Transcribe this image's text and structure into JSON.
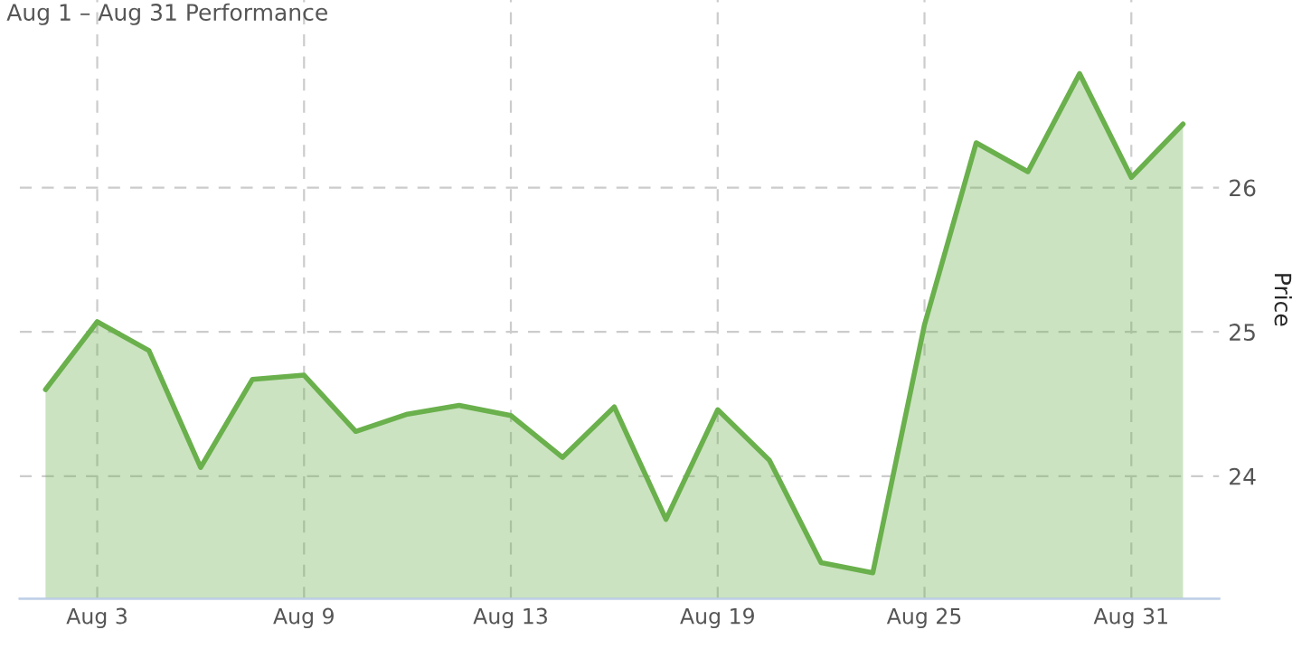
{
  "chart_data": {
    "type": "area",
    "title": "Aug 1 – Aug 31 Performance",
    "ylabel": "Price",
    "categories": [
      null,
      "Aug 3",
      null,
      null,
      null,
      "Aug 9",
      null,
      null,
      null,
      "Aug 13",
      null,
      null,
      null,
      "Aug 19",
      null,
      null,
      null,
      "Aug 25",
      null,
      null,
      null,
      "Aug 31",
      null
    ],
    "series": [
      {
        "color": "#6ab04c",
        "axis": "y2",
        "values": [
          24.6,
          25.07,
          24.87,
          24.06,
          24.67,
          24.7,
          24.31,
          24.43,
          24.49,
          24.42,
          24.13,
          24.48,
          23.7,
          24.46,
          24.11,
          23.4,
          23.33,
          25.05,
          26.31,
          26.11,
          26.79,
          26.07,
          26.44
        ]
      }
    ],
    "y2lim": [
      23.15,
      27.3
    ],
    "y2ticks": [
      24,
      25,
      26
    ],
    "grid": true
  }
}
